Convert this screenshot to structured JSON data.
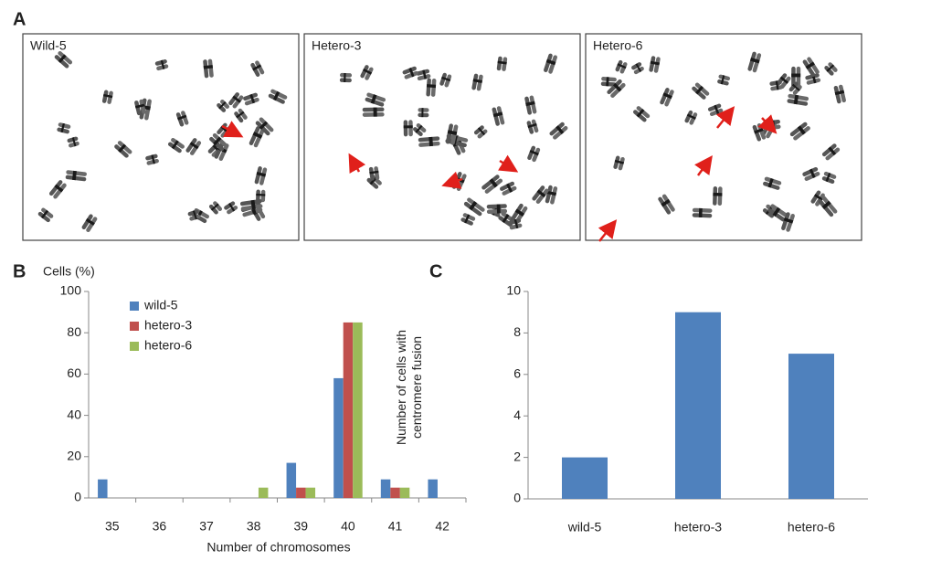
{
  "panel_a": {
    "label": "A",
    "images": [
      "Wild-5",
      "Hetero-3",
      "Hetero-6"
    ]
  },
  "chart_data": [
    {
      "type": "bar",
      "panel_label": "B",
      "ylabel": "Cells (%)",
      "xlabel": "Number of chromosomes",
      "categories": [
        "35",
        "36",
        "37",
        "38",
        "39",
        "40",
        "41",
        "42"
      ],
      "series": [
        {
          "name": "wild-5",
          "color": "#4f81bd",
          "values": [
            9,
            0,
            0,
            0,
            17,
            58,
            9,
            9
          ]
        },
        {
          "name": "hetero-3",
          "color": "#c0504d",
          "values": [
            0,
            0,
            0,
            0,
            5,
            85,
            5,
            0
          ]
        },
        {
          "name": "hetero-6",
          "color": "#9bbb59",
          "values": [
            0,
            0,
            0,
            5,
            5,
            85,
            5,
            0
          ]
        }
      ],
      "ylim": [
        0,
        100
      ],
      "yticks": [
        0,
        20,
        40,
        60,
        80,
        100
      ],
      "grid": false,
      "legend": "top-left"
    },
    {
      "type": "bar",
      "panel_label": "C",
      "ylabel": "Number of cells with centromere fusion",
      "categories": [
        "wild-5",
        "hetero-3",
        "hetero-6"
      ],
      "values": [
        2,
        9,
        7
      ],
      "color": "#4f81bd",
      "ylim": [
        0,
        10
      ],
      "yticks": [
        0,
        2,
        4,
        6,
        8,
        10
      ],
      "grid": false
    }
  ]
}
